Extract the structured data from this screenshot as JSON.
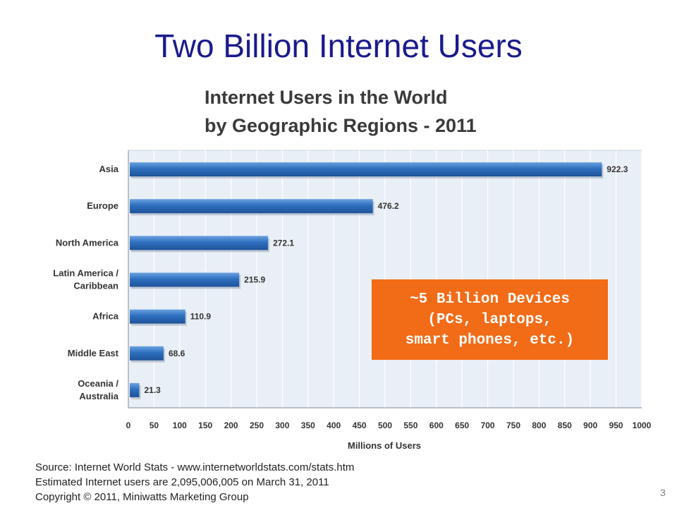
{
  "slide": {
    "title": "Two Billion Internet Users",
    "page_number": "3"
  },
  "callout": {
    "lines": [
      "~5 Billion Devices",
      "(PCs, laptops,",
      "smart phones, etc.)"
    ],
    "background": "#f26b16"
  },
  "source_note": {
    "lines": [
      "Source: Internet World Stats - www.internetworldstats.com/stats.htm",
      "Estimated Internet users are 2,095,006,005 on March 31, 2011",
      "Copyright © 2011, Miniwatts Marketing Group"
    ]
  },
  "chart_data": {
    "type": "bar",
    "orientation": "horizontal",
    "title": "Internet Users in the World",
    "subtitle": "by Geographic Regions - 2011",
    "xlabel": "Millions of Users",
    "ylabel": "",
    "categories": [
      [
        "Asia"
      ],
      [
        "Europe"
      ],
      [
        "North America"
      ],
      [
        "Latin America /",
        "Caribbean"
      ],
      [
        "Africa"
      ],
      [
        "Middle East"
      ],
      [
        "Oceania  /",
        "Australia"
      ]
    ],
    "values": [
      922.3,
      476.2,
      272.1,
      215.9,
      110.9,
      68.6,
      21.3
    ],
    "value_labels": [
      "922.3",
      "476.2",
      "272.1",
      "215.9",
      "110.9",
      "68.6",
      "21.3"
    ],
    "xlim": [
      0,
      1000
    ],
    "xticks": [
      0,
      50,
      100,
      150,
      200,
      250,
      300,
      350,
      400,
      450,
      500,
      550,
      600,
      650,
      700,
      750,
      800,
      850,
      900,
      950,
      1000
    ],
    "grid": true,
    "bar_color": "#2e6fbe",
    "panel_color": "#e9eff6"
  }
}
